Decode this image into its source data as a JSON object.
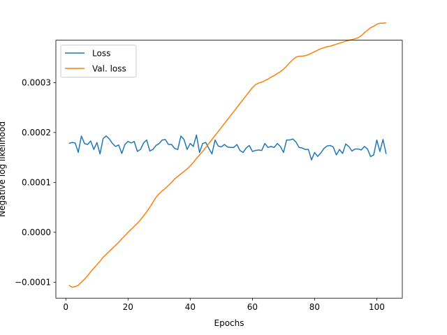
{
  "chart_data": {
    "type": "line",
    "xlabel": "Epochs",
    "ylabel": "Negative log likelihood",
    "xlim": [
      -3.2,
      108.2
    ],
    "ylim": [
      -0.000132,
      0.000385
    ],
    "xticks": [
      0,
      20,
      40,
      60,
      80,
      100
    ],
    "xtick_labels": [
      "0",
      "20",
      "40",
      "60",
      "80",
      "100"
    ],
    "yticks": [
      -0.0001,
      0.0,
      0.0001,
      0.0002,
      0.0003
    ],
    "ytick_labels": [
      "−0.0001",
      "0.0000",
      "0.0001",
      "0.0002",
      "0.0003"
    ],
    "grid": false,
    "legend_position": "top-left",
    "series": [
      {
        "name": "Loss",
        "color": "#1f77b4",
        "x": [
          1,
          2,
          3,
          4,
          5,
          6,
          7,
          8,
          9,
          10,
          11,
          12,
          13,
          14,
          15,
          16,
          17,
          18,
          19,
          20,
          21,
          22,
          23,
          24,
          25,
          26,
          27,
          28,
          29,
          30,
          31,
          32,
          33,
          34,
          35,
          36,
          37,
          38,
          39,
          40,
          41,
          42,
          43,
          44,
          45,
          46,
          47,
          48,
          49,
          50,
          51,
          52,
          53,
          54,
          55,
          56,
          57,
          58,
          59,
          60,
          61,
          62,
          63,
          64,
          65,
          66,
          67,
          68,
          69,
          70,
          71,
          72,
          73,
          74,
          75,
          76,
          77,
          78,
          79,
          80,
          81,
          82,
          83,
          84,
          85,
          86,
          87,
          88,
          89,
          90,
          91,
          92,
          93,
          94,
          95,
          96,
          97,
          98,
          99,
          100,
          101,
          102,
          103
        ],
        "y": [
          0.000178,
          0.00018,
          0.000179,
          0.00016,
          0.000193,
          0.000178,
          0.000176,
          0.000183,
          0.000166,
          0.00018,
          0.000157,
          0.000188,
          0.000193,
          0.000187,
          0.000178,
          0.000172,
          0.000175,
          0.000158,
          0.000176,
          0.000182,
          0.000179,
          0.000182,
          0.000162,
          0.000166,
          0.000179,
          0.000185,
          0.000163,
          0.000166,
          0.000174,
          0.000178,
          0.000185,
          0.000186,
          0.000176,
          0.000176,
          0.000168,
          0.000166,
          0.000193,
          0.000186,
          0.000166,
          0.000178,
          0.000172,
          0.000195,
          0.00016,
          0.000178,
          0.00018,
          0.000168,
          0.000157,
          0.000185,
          0.000173,
          0.000171,
          0.000176,
          0.000171,
          0.00017,
          0.00017,
          0.000176,
          0.000164,
          0.00016,
          0.000169,
          0.000174,
          0.000162,
          0.000164,
          0.000165,
          0.000164,
          0.000178,
          0.00017,
          0.000172,
          0.00017,
          0.000178,
          0.000172,
          0.00016,
          0.000185,
          0.000185,
          0.000187,
          0.000181,
          0.00017,
          0.000169,
          0.000166,
          0.000166,
          0.000145,
          0.00016,
          0.000152,
          0.000159,
          0.000168,
          0.000173,
          0.000174,
          0.000171,
          0.000155,
          0.000166,
          0.000158,
          0.000177,
          0.000172,
          0.000163,
          0.000167,
          0.000167,
          0.000165,
          0.000172,
          0.000167,
          0.000152,
          0.000155,
          0.000185,
          0.000162,
          0.000186,
          0.000157
        ]
      },
      {
        "name": "Val. loss",
        "color": "#ff7f0e",
        "x": [
          1,
          2,
          3,
          4,
          5,
          6,
          7,
          8,
          9,
          10,
          11,
          12,
          13,
          14,
          15,
          16,
          17,
          18,
          19,
          20,
          21,
          22,
          23,
          24,
          25,
          26,
          27,
          28,
          29,
          30,
          31,
          32,
          33,
          34,
          35,
          36,
          37,
          38,
          39,
          40,
          41,
          42,
          43,
          44,
          45,
          46,
          47,
          48,
          49,
          50,
          51,
          52,
          53,
          54,
          55,
          56,
          57,
          58,
          59,
          60,
          61,
          62,
          63,
          64,
          65,
          66,
          67,
          68,
          69,
          70,
          71,
          72,
          73,
          74,
          75,
          76,
          77,
          78,
          79,
          80,
          81,
          82,
          83,
          84,
          85,
          86,
          87,
          88,
          89,
          90,
          91,
          92,
          93,
          94,
          95,
          96,
          97,
          98,
          99,
          100,
          101,
          102,
          103
        ],
        "y": [
          -0.000106,
          -0.00011,
          -0.000109,
          -0.000106,
          -0.0001,
          -9.4e-05,
          -8.7e-05,
          -7.9e-05,
          -7.2e-05,
          -6.5e-05,
          -5.8e-05,
          -5e-05,
          -4.4e-05,
          -3.8e-05,
          -3.2e-05,
          -2.6e-05,
          -2e-05,
          -1.3e-05,
          -7e-06,
          0.0,
          6e-06,
          1.2e-05,
          1.8e-05,
          2.5e-05,
          3.3e-05,
          4.1e-05,
          5e-05,
          6e-05,
          7e-05,
          7.7e-05,
          8.3e-05,
          8.8e-05,
          9.4e-05,
          0.0001,
          0.000107,
          0.000112,
          0.000117,
          0.000122,
          0.000127,
          0.000133,
          0.00014,
          0.000148,
          0.000155,
          0.000162,
          0.00017,
          0.000178,
          0.000186,
          0.000194,
          0.000202,
          0.00021,
          0.000218,
          0.000226,
          0.000234,
          0.000242,
          0.00025,
          0.000258,
          0.000266,
          0.000274,
          0.000282,
          0.00029,
          0.000296,
          0.000299,
          0.000301,
          0.000304,
          0.000307,
          0.000311,
          0.000314,
          0.000318,
          0.000322,
          0.000327,
          0.000333,
          0.00034,
          0.000346,
          0.000351,
          0.000353,
          0.000353,
          0.000354,
          0.000356,
          0.000359,
          0.000362,
          0.000365,
          0.000368,
          0.00037,
          0.000372,
          0.000373,
          0.000375,
          0.000377,
          0.000379,
          0.000381,
          0.000383,
          0.000385,
          0.000386,
          0.000388,
          0.00039,
          0.000394,
          0.0004,
          0.000405,
          0.00041,
          0.000413,
          0.000417,
          0.000419,
          0.000419,
          0.00042
        ]
      }
    ]
  }
}
